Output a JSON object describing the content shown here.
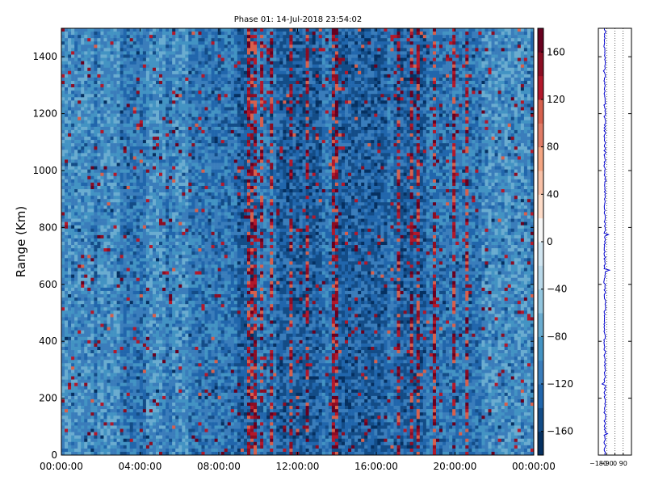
{
  "chart_data": [
    {
      "type": "heatmap",
      "title": "Phase 01: 14-Jul-2018 23:54:02",
      "xlabel": "",
      "ylabel": "Range (Km)",
      "x_ticks": [
        "00:00:00",
        "04:00:00",
        "08:00:00",
        "12:00:00",
        "16:00:00",
        "20:00:00",
        "00:00:00"
      ],
      "xlim_hours": [
        0,
        24
      ],
      "y_ticks": [
        0,
        200,
        400,
        600,
        800,
        1000,
        1200,
        1400
      ],
      "ylim": [
        0,
        1500
      ],
      "colorbar": {
        "ticks": [
          -160,
          -120,
          -80,
          -40,
          0,
          40,
          80,
          120,
          160
        ],
        "range": [
          -180,
          180
        ],
        "colormap": "RdBu_r",
        "levels": 18
      },
      "columns": {
        "count": 145,
        "dark_hours": [
          [
            8.9,
            9.9
          ],
          [
            11.0,
            13.3
          ],
          [
            13.7,
            16.5
          ],
          [
            16.8,
            18.6
          ]
        ],
        "red_hours": [
          9.6,
          9.85,
          10.15,
          10.75,
          11.65,
          12.45,
          13.75,
          13.95,
          17.2,
          17.85,
          18.05,
          18.95,
          19.9,
          20.6
        ],
        "light_hours": [
          [
            0,
            1.6
          ],
          [
            1.9,
            3.0
          ],
          [
            4.3,
            5.3
          ],
          [
            5.6,
            6.4
          ],
          [
            21.3,
            23.9
          ]
        ]
      }
    },
    {
      "type": "line",
      "title": "",
      "xlabel": "",
      "ylabel": "",
      "x_ticks": [
        "−180",
        "−90",
        "0",
        "90"
      ],
      "xlim": [
        -180,
        180
      ],
      "ylim": [
        0,
        1500
      ],
      "y_ticks": [
        0,
        200,
        400,
        600,
        800,
        1000,
        1200,
        1400
      ],
      "series": [
        {
          "values_mean": -110,
          "values_spread": 10,
          "spikes": [
            {
              "range": 75,
              "value": -80
            },
            {
              "range": 250,
              "value": -140
            },
            {
              "range": 650,
              "value": -60
            },
            {
              "range": 775,
              "value": -70
            },
            {
              "range": 965,
              "value": -95
            },
            {
              "range": 1065,
              "value": -100
            },
            {
              "range": 1350,
              "value": -125
            }
          ],
          "color": "#0000cc"
        }
      ]
    }
  ]
}
